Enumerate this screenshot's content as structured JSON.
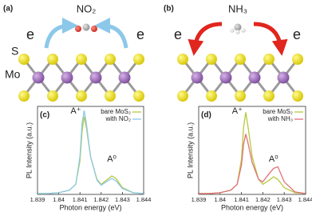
{
  "diagrams": [
    {
      "label": "(a)",
      "molecule": "NO₂",
      "electron_labels": [
        "e",
        "e"
      ],
      "atom_labels": [
        "S",
        "Mo"
      ]
    },
    {
      "label": "(b)",
      "molecule": "NH₃",
      "electron_labels": [
        "e",
        "e"
      ]
    }
  ],
  "chart_data": [
    {
      "type": "line",
      "panel_label": "(c)",
      "annotations": [
        "A⁺",
        "A⁰"
      ],
      "xlabel": "Photon energy (eV)",
      "ylabel": "PL Intensity (a.u.)",
      "x": [
        1.839,
        1.8395,
        1.84,
        1.8405,
        1.8408,
        1.841,
        1.8411,
        1.8412,
        1.8413,
        1.8415,
        1.8418,
        1.842,
        1.8423,
        1.8425,
        1.8427,
        1.843,
        1.8435,
        1.844
      ],
      "series": [
        {
          "name": "bare MoS₂",
          "color": "#b8c93c",
          "values": [
            0.01,
            0.01,
            0.02,
            0.05,
            0.12,
            0.4,
            0.75,
            0.93,
            0.8,
            0.45,
            0.18,
            0.12,
            0.18,
            0.22,
            0.19,
            0.08,
            0.02,
            0.01
          ]
        },
        {
          "name": "with NO₂",
          "color": "#8cc8ea",
          "values": [
            0.01,
            0.01,
            0.02,
            0.05,
            0.12,
            0.45,
            0.85,
            1.0,
            0.85,
            0.45,
            0.17,
            0.11,
            0.16,
            0.19,
            0.16,
            0.07,
            0.02,
            0.01
          ]
        }
      ],
      "xlim": [
        1.839,
        1.844
      ],
      "xticks": [
        1.839,
        1.84,
        1.841,
        1.842,
        1.843,
        1.844
      ],
      "ylim": [
        0,
        1.05
      ],
      "legend": "upper right"
    },
    {
      "type": "line",
      "panel_label": "(d)",
      "annotations": [
        "A⁺",
        "A⁰"
      ],
      "xlabel": "Photon energy (eV)",
      "ylabel": "PL Intensity (a.u.)",
      "x": [
        1.839,
        1.8395,
        1.84,
        1.8405,
        1.8408,
        1.841,
        1.8411,
        1.8412,
        1.8413,
        1.8415,
        1.8418,
        1.842,
        1.8423,
        1.8425,
        1.8427,
        1.843,
        1.8435,
        1.844
      ],
      "series": [
        {
          "name": "bare MoS₂",
          "color": "#b8c93c",
          "values": [
            0.01,
            0.01,
            0.02,
            0.05,
            0.12,
            0.42,
            0.8,
            0.98,
            0.82,
            0.45,
            0.18,
            0.12,
            0.17,
            0.21,
            0.18,
            0.08,
            0.02,
            0.01
          ]
        },
        {
          "name": "with NH₃",
          "color": "#e2707a",
          "values": [
            0.01,
            0.01,
            0.02,
            0.05,
            0.12,
            0.35,
            0.6,
            0.72,
            0.62,
            0.38,
            0.18,
            0.15,
            0.25,
            0.31,
            0.33,
            0.15,
            0.03,
            0.01
          ]
        }
      ],
      "xlim": [
        1.839,
        1.844
      ],
      "xticks": [
        1.839,
        1.84,
        1.841,
        1.842,
        1.843,
        1.844
      ],
      "ylim": [
        0,
        1.05
      ],
      "legend": "upper right"
    }
  ]
}
